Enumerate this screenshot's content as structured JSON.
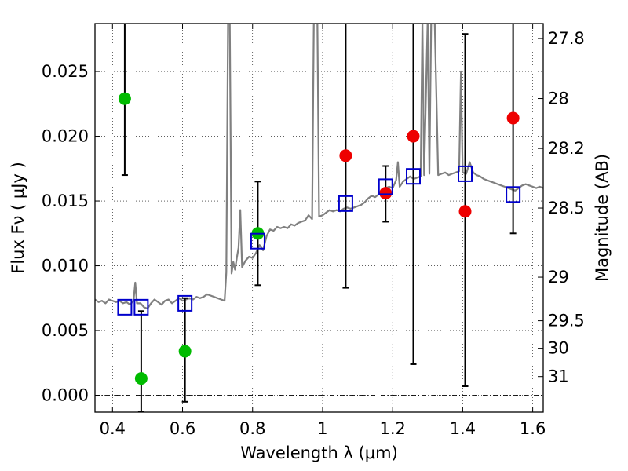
{
  "chart_data": {
    "type": "scatter",
    "xlabel": "Wavelength  λ (μm)",
    "ylabel": "Flux  Fν  ( μJy )",
    "y2label": "Magnitude (AB)",
    "xlim": [
      0.35,
      1.63
    ],
    "ylim": [
      -0.0013,
      0.0287
    ],
    "grid": true,
    "grid_style": "dotted",
    "x_ticks": [
      {
        "value": 0.4,
        "label": "0.4"
      },
      {
        "value": 0.6,
        "label": "0.6"
      },
      {
        "value": 0.8,
        "label": "0.8"
      },
      {
        "value": 1.0,
        "label": "1"
      },
      {
        "value": 1.2,
        "label": "1.2"
      },
      {
        "value": 1.4,
        "label": "1.4"
      },
      {
        "value": 1.6,
        "label": "1.6"
      }
    ],
    "y_ticks": [
      {
        "value": 0.0,
        "label": "0.000"
      },
      {
        "value": 0.005,
        "label": "0.005"
      },
      {
        "value": 0.01,
        "label": "0.010"
      },
      {
        "value": 0.015,
        "label": "0.015"
      },
      {
        "value": 0.02,
        "label": "0.020"
      },
      {
        "value": 0.025,
        "label": "0.025"
      }
    ],
    "mag_ticks": [
      {
        "mag": 27.8,
        "label": "27.8"
      },
      {
        "mag": 28.0,
        "label": "28"
      },
      {
        "mag": 28.2,
        "label": "28.2"
      },
      {
        "mag": 28.5,
        "label": "28.5"
      },
      {
        "mag": 29.0,
        "label": "29"
      },
      {
        "mag": 29.5,
        "label": "29.5"
      },
      {
        "mag": 30.0,
        "label": "30"
      },
      {
        "mag": 31.0,
        "label": "31"
      }
    ],
    "series": [
      {
        "kind": "line",
        "color": "#808080",
        "points": [
          [
            0.35,
            0.0074
          ],
          [
            0.36,
            0.0072
          ],
          [
            0.37,
            0.0073
          ],
          [
            0.38,
            0.0071
          ],
          [
            0.39,
            0.0074
          ],
          [
            0.4,
            0.0073
          ],
          [
            0.41,
            0.0072
          ],
          [
            0.42,
            0.0073
          ],
          [
            0.43,
            0.0071
          ],
          [
            0.44,
            0.0072
          ],
          [
            0.45,
            0.007
          ],
          [
            0.46,
            0.0073
          ],
          [
            0.465,
            0.0087
          ],
          [
            0.47,
            0.0071
          ],
          [
            0.48,
            0.0071
          ],
          [
            0.49,
            0.0068
          ],
          [
            0.5,
            0.0067
          ],
          [
            0.51,
            0.0071
          ],
          [
            0.52,
            0.0074
          ],
          [
            0.53,
            0.0072
          ],
          [
            0.54,
            0.007
          ],
          [
            0.55,
            0.0073
          ],
          [
            0.56,
            0.0074
          ],
          [
            0.57,
            0.0071
          ],
          [
            0.58,
            0.0073
          ],
          [
            0.59,
            0.0075
          ],
          [
            0.6,
            0.0073
          ],
          [
            0.61,
            0.0074
          ],
          [
            0.62,
            0.0075
          ],
          [
            0.63,
            0.0074
          ],
          [
            0.64,
            0.0076
          ],
          [
            0.65,
            0.0075
          ],
          [
            0.66,
            0.0076
          ],
          [
            0.67,
            0.0078
          ],
          [
            0.68,
            0.0077
          ],
          [
            0.69,
            0.0076
          ],
          [
            0.7,
            0.0075
          ],
          [
            0.71,
            0.0074
          ],
          [
            0.72,
            0.0073
          ],
          [
            0.725,
            0.0095
          ],
          [
            0.73,
            0.029
          ],
          [
            0.735,
            0.029
          ],
          [
            0.74,
            0.0094
          ],
          [
            0.745,
            0.0103
          ],
          [
            0.75,
            0.0097
          ],
          [
            0.755,
            0.0106
          ],
          [
            0.76,
            0.0114
          ],
          [
            0.765,
            0.0143
          ],
          [
            0.77,
            0.0099
          ],
          [
            0.78,
            0.0104
          ],
          [
            0.79,
            0.0107
          ],
          [
            0.8,
            0.0106
          ],
          [
            0.81,
            0.011
          ],
          [
            0.82,
            0.0116
          ],
          [
            0.83,
            0.0112
          ],
          [
            0.84,
            0.0123
          ],
          [
            0.85,
            0.0128
          ],
          [
            0.86,
            0.0127
          ],
          [
            0.87,
            0.013
          ],
          [
            0.88,
            0.0129
          ],
          [
            0.89,
            0.013
          ],
          [
            0.9,
            0.0129
          ],
          [
            0.91,
            0.0132
          ],
          [
            0.92,
            0.0131
          ],
          [
            0.93,
            0.0133
          ],
          [
            0.94,
            0.0134
          ],
          [
            0.95,
            0.0135
          ],
          [
            0.96,
            0.0139
          ],
          [
            0.97,
            0.0136
          ],
          [
            0.975,
            0.029
          ],
          [
            0.985,
            0.029
          ],
          [
            0.99,
            0.0138
          ],
          [
            1.0,
            0.0139
          ],
          [
            1.01,
            0.0141
          ],
          [
            1.02,
            0.0143
          ],
          [
            1.03,
            0.0142
          ],
          [
            1.04,
            0.0143
          ],
          [
            1.05,
            0.0142
          ],
          [
            1.06,
            0.0144
          ],
          [
            1.07,
            0.0145
          ],
          [
            1.08,
            0.0144
          ],
          [
            1.09,
            0.0145
          ],
          [
            1.1,
            0.0146
          ],
          [
            1.11,
            0.0147
          ],
          [
            1.12,
            0.0149
          ],
          [
            1.13,
            0.0152
          ],
          [
            1.14,
            0.0154
          ],
          [
            1.15,
            0.0153
          ],
          [
            1.16,
            0.0155
          ],
          [
            1.17,
            0.0156
          ],
          [
            1.18,
            0.016
          ],
          [
            1.19,
            0.0161
          ],
          [
            1.2,
            0.016
          ],
          [
            1.21,
            0.0166
          ],
          [
            1.215,
            0.018
          ],
          [
            1.22,
            0.0161
          ],
          [
            1.23,
            0.0165
          ],
          [
            1.24,
            0.0167
          ],
          [
            1.25,
            0.0169
          ],
          [
            1.26,
            0.0167
          ],
          [
            1.27,
            0.0168
          ],
          [
            1.28,
            0.0169
          ],
          [
            1.285,
            0.029
          ],
          [
            1.29,
            0.017
          ],
          [
            1.3,
            0.029
          ],
          [
            1.305,
            0.0171
          ],
          [
            1.31,
            0.029
          ],
          [
            1.32,
            0.029
          ],
          [
            1.33,
            0.017
          ],
          [
            1.34,
            0.0171
          ],
          [
            1.35,
            0.0172
          ],
          [
            1.36,
            0.017
          ],
          [
            1.37,
            0.0171
          ],
          [
            1.38,
            0.0172
          ],
          [
            1.39,
            0.0173
          ],
          [
            1.395,
            0.025
          ],
          [
            1.4,
            0.0172
          ],
          [
            1.41,
            0.0171
          ],
          [
            1.42,
            0.018
          ],
          [
            1.43,
            0.0172
          ],
          [
            1.44,
            0.017
          ],
          [
            1.45,
            0.0169
          ],
          [
            1.46,
            0.0167
          ],
          [
            1.47,
            0.0166
          ],
          [
            1.48,
            0.0165
          ],
          [
            1.49,
            0.0164
          ],
          [
            1.5,
            0.0163
          ],
          [
            1.51,
            0.0162
          ],
          [
            1.52,
            0.0161
          ],
          [
            1.53,
            0.016
          ],
          [
            1.54,
            0.0159
          ],
          [
            1.55,
            0.0158
          ],
          [
            1.56,
            0.016
          ],
          [
            1.57,
            0.0162
          ],
          [
            1.58,
            0.0163
          ],
          [
            1.59,
            0.0162
          ],
          [
            1.6,
            0.0161
          ],
          [
            1.61,
            0.016
          ],
          [
            1.62,
            0.0161
          ],
          [
            1.63,
            0.016
          ]
        ]
      },
      {
        "kind": "errorbar",
        "color": "#000000",
        "bars": [
          {
            "x": 0.435,
            "low": 0.017,
            "high": 0.029
          },
          {
            "x": 0.482,
            "low": -0.0013,
            "high": 0.0065
          },
          {
            "x": 0.607,
            "low": -0.0005,
            "high": 0.0075
          },
          {
            "x": 0.815,
            "low": 0.0085,
            "high": 0.0165
          },
          {
            "x": 1.066,
            "low": 0.0083,
            "high": 0.0287
          },
          {
            "x": 1.18,
            "low": 0.0134,
            "high": 0.0177
          },
          {
            "x": 1.259,
            "low": 0.0024,
            "high": 0.029
          },
          {
            "x": 1.407,
            "low": 0.0007,
            "high": 0.0279
          },
          {
            "x": 1.544,
            "low": 0.0125,
            "high": 0.029
          }
        ]
      },
      {
        "kind": "points",
        "marker": "circle",
        "color": "#00bb00",
        "points": [
          [
            0.435,
            0.0229
          ],
          [
            0.482,
            0.0013
          ],
          [
            0.607,
            0.0034
          ],
          [
            0.815,
            0.0125
          ]
        ]
      },
      {
        "kind": "points",
        "marker": "circle",
        "color": "#ee0000",
        "points": [
          [
            1.066,
            0.0185
          ],
          [
            1.18,
            0.0156
          ],
          [
            1.259,
            0.02
          ],
          [
            1.407,
            0.0142
          ],
          [
            1.544,
            0.0214
          ]
        ]
      },
      {
        "kind": "points",
        "marker": "square",
        "color": "#0000cc",
        "points": [
          [
            0.435,
            0.0068
          ],
          [
            0.482,
            0.0068
          ],
          [
            0.607,
            0.0071
          ],
          [
            0.815,
            0.0119
          ],
          [
            1.066,
            0.0148
          ],
          [
            1.18,
            0.0161
          ],
          [
            1.259,
            0.0169
          ],
          [
            1.407,
            0.0171
          ],
          [
            1.544,
            0.0155
          ]
        ]
      }
    ],
    "reference_lines": [
      {
        "axis": "y",
        "value": 0.0,
        "style": "dash-dot",
        "color": "#000000"
      }
    ]
  }
}
